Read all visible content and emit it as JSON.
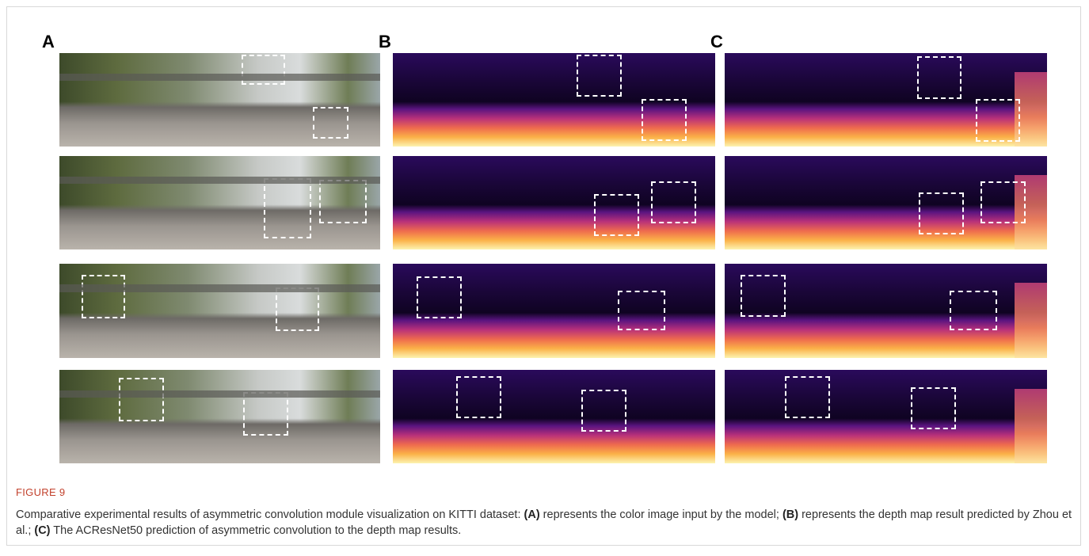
{
  "figure": {
    "panel_labels": [
      "A",
      "B",
      "C"
    ]
  },
  "caption": {
    "label": "FIGURE 9",
    "intro": "Comparative experimental results of asymmetric convolution module visualization on KITTI dataset: ",
    "a_key": "(A)",
    "a_text": " represents the color image input by the model;",
    "b_key": "(B)",
    "b_text": " represents the depth map result predicted by Zhou et al.;",
    "c_key": "(C)",
    "c_text": " The ACResNet50 prediction of asymmetric convolution to the depth map results."
  }
}
